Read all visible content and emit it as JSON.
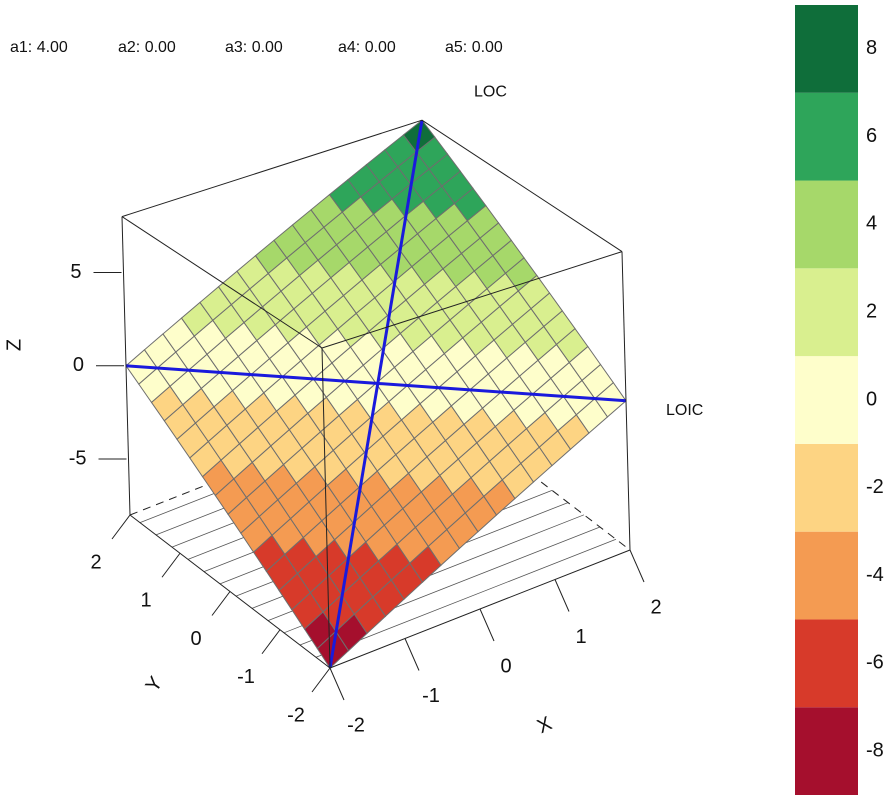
{
  "chart_data": {
    "type": "surface3d",
    "parameters": [
      "a1: 4.00",
      "a2: 0.00",
      "a3: 0.00",
      "a4: 0.00",
      "a5: 0.00"
    ],
    "line_labels": [
      "LOC",
      "LOIC"
    ],
    "line_color": "#1a1adc",
    "xlabel": "X",
    "ylabel": "Y",
    "zlabel": "Z",
    "xlim": [
      -2,
      2
    ],
    "ylim": [
      -2,
      2
    ],
    "zlim": [
      -8,
      8
    ],
    "xticks": [
      -2,
      -1,
      0,
      1,
      2
    ],
    "yticks": [
      -2,
      -1,
      0,
      1,
      2
    ],
    "zticks": [
      -5,
      0,
      5
    ],
    "surface": {
      "x": [
        -2,
        -1.75,
        -1.5,
        -1.25,
        -1,
        -0.75,
        -0.5,
        -0.25,
        0,
        0.25,
        0.5,
        0.75,
        1,
        1.25,
        1.5,
        1.75,
        2
      ],
      "y": [
        -2,
        -1.75,
        -1.5,
        -1.25,
        -1,
        -0.75,
        -0.5,
        -0.25,
        0,
        0.25,
        0.5,
        0.75,
        1,
        1.25,
        1.5,
        1.75,
        2
      ],
      "z": [
        [
          -8,
          -7.5,
          -7,
          -6.5,
          -6,
          -5.5,
          -5,
          -4.5,
          -4,
          -3.5,
          -3,
          -2.5,
          -2,
          -1.5,
          -1,
          -0.5,
          0
        ],
        [
          -7.5,
          -7,
          -6.5,
          -6,
          -5.5,
          -5,
          -4.5,
          -4,
          -3.5,
          -3,
          -2.5,
          -2,
          -1.5,
          -1,
          -0.5,
          0,
          0.5
        ],
        [
          -7,
          -6.5,
          -6,
          -5.5,
          -5,
          -4.5,
          -4,
          -3.5,
          -3,
          -2.5,
          -2,
          -1.5,
          -1,
          -0.5,
          0,
          0.5,
          1
        ],
        [
          -6.5,
          -6,
          -5.5,
          -5,
          -4.5,
          -4,
          -3.5,
          -3,
          -2.5,
          -2,
          -1.5,
          -1,
          -0.5,
          0,
          0.5,
          1,
          1.5
        ],
        [
          -6,
          -5.5,
          -5,
          -4.5,
          -4,
          -3.5,
          -3,
          -2.5,
          -2,
          -1.5,
          -1,
          -0.5,
          0,
          0.5,
          1,
          1.5,
          2
        ],
        [
          -5.5,
          -5,
          -4.5,
          -4,
          -3.5,
          -3,
          -2.5,
          -2,
          -1.5,
          -1,
          -0.5,
          0,
          0.5,
          1,
          1.5,
          2,
          2.5
        ],
        [
          -5,
          -4.5,
          -4,
          -3.5,
          -3,
          -2.5,
          -2,
          -1.5,
          -1,
          -0.5,
          0,
          0.5,
          1,
          1.5,
          2,
          2.5,
          3
        ],
        [
          -4.5,
          -4,
          -3.5,
          -3,
          -2.5,
          -2,
          -1.5,
          -1,
          -0.5,
          0,
          0.5,
          1,
          1.5,
          2,
          2.5,
          3,
          3.5
        ],
        [
          -4,
          -3.5,
          -3,
          -2.5,
          -2,
          -1.5,
          -1,
          -0.5,
          0,
          0.5,
          1,
          1.5,
          2,
          2.5,
          3,
          3.5,
          4
        ],
        [
          -3.5,
          -3,
          -2.5,
          -2,
          -1.5,
          -1,
          -0.5,
          0,
          0.5,
          1,
          1.5,
          2,
          2.5,
          3,
          3.5,
          4,
          4.5
        ],
        [
          -3,
          -2.5,
          -2,
          -1.5,
          -1,
          -0.5,
          0,
          0.5,
          1,
          1.5,
          2,
          2.5,
          3,
          3.5,
          4,
          4.5,
          5
        ],
        [
          -2.5,
          -2,
          -1.5,
          -1,
          -0.5,
          0,
          0.5,
          1,
          1.5,
          2,
          2.5,
          3,
          3.5,
          4,
          4.5,
          5,
          5.5
        ],
        [
          -2,
          -1.5,
          -1,
          -0.5,
          0,
          0.5,
          1,
          1.5,
          2,
          2.5,
          3,
          3.5,
          4,
          4.5,
          5,
          5.5,
          6
        ],
        [
          -1.5,
          -1,
          -0.5,
          0,
          0.5,
          1,
          1.5,
          2,
          2.5,
          3,
          3.5,
          4,
          4.5,
          5,
          5.5,
          6,
          6.5
        ],
        [
          -1,
          -0.5,
          0,
          0.5,
          1,
          1.5,
          2,
          2.5,
          3,
          3.5,
          4,
          4.5,
          5,
          5.5,
          6,
          6.5,
          7
        ],
        [
          -0.5,
          0,
          0.5,
          1,
          1.5,
          2,
          2.5,
          3,
          3.5,
          4,
          4.5,
          5,
          5.5,
          6,
          6.5,
          7,
          7.5
        ],
        [
          0,
          0.5,
          1,
          1.5,
          2,
          2.5,
          3,
          3.5,
          4,
          4.5,
          5,
          5.5,
          6,
          6.5,
          7,
          7.5,
          8
        ]
      ]
    },
    "colorbar": {
      "bins": [
        -9,
        -7,
        -5,
        -3,
        -1,
        1,
        3,
        5,
        7,
        9
      ],
      "colors": [
        "#a50f2d",
        "#d73a2a",
        "#f49b52",
        "#fdd483",
        "#fefecb",
        "#d9ef8f",
        "#a6d86a",
        "#2ea55a",
        "#0f6e3a"
      ],
      "ticks": [
        -8,
        -6,
        -4,
        -2,
        0,
        2,
        4,
        6,
        8
      ]
    }
  }
}
